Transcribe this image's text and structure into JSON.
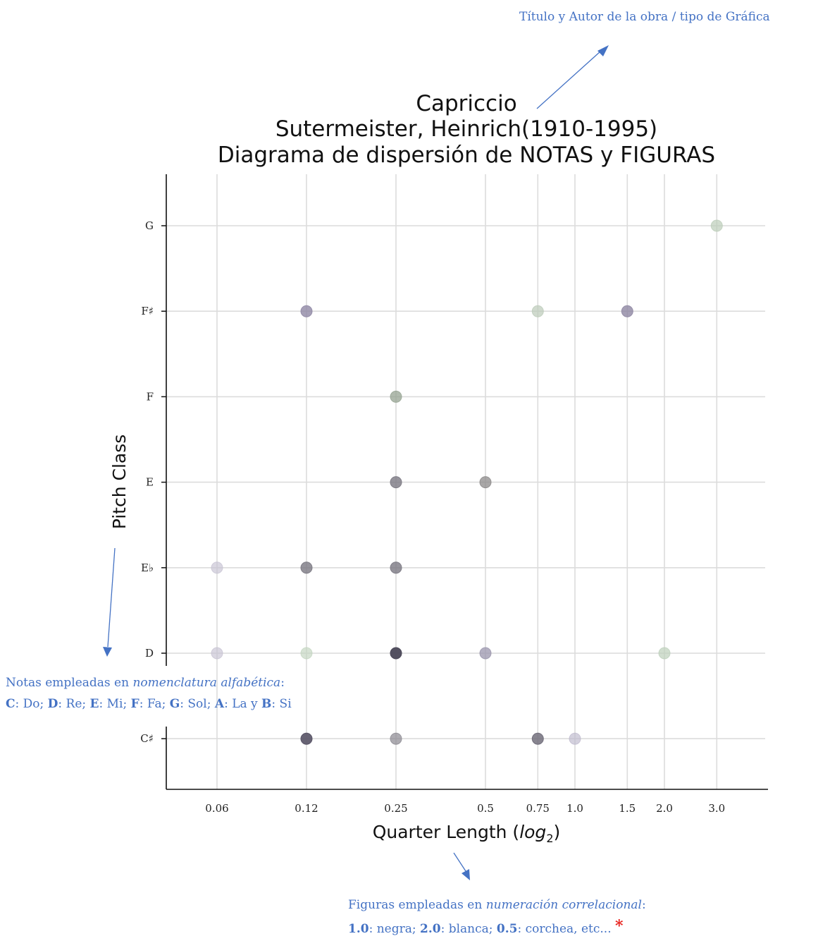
{
  "chart_data": {
    "type": "scatter",
    "title": [
      "Capriccio",
      "Sutermeister, Heinrich(1910-1995)",
      "Diagrama de dispersión de NOTAS y FIGURAS"
    ],
    "xlabel": "Quarter Length (log₂)",
    "ylabel": "Pitch Class",
    "x_scale": "log2",
    "x_ticks": [
      "0.06",
      "0.12",
      "0.25",
      "0.5",
      "0.75",
      "1.0",
      "1.5",
      "2.0",
      "3.0"
    ],
    "x_tick_values": [
      0.0625,
      0.125,
      0.25,
      0.5,
      0.75,
      1.0,
      1.5,
      2.0,
      3.0
    ],
    "y_categories": [
      "C♯",
      "D",
      "E♭",
      "E",
      "F",
      "F♯",
      "G"
    ],
    "grid": true,
    "points": [
      {
        "x": 0.125,
        "y": "C♯",
        "c": "#5a5668",
        "a": 0.92
      },
      {
        "x": 0.25,
        "y": "C♯",
        "c": "#8a8890",
        "a": 0.7
      },
      {
        "x": 0.75,
        "y": "C♯",
        "c": "#6e6a78",
        "a": 0.82
      },
      {
        "x": 1.0,
        "y": "C♯",
        "c": "#bdb8cc",
        "a": 0.65
      },
      {
        "x": 0.0625,
        "y": "D",
        "c": "#c6c1d2",
        "a": 0.65
      },
      {
        "x": 0.125,
        "y": "D",
        "c": "#c2d4bf",
        "a": 0.65
      },
      {
        "x": 0.25,
        "y": "D",
        "c": "#4b4858",
        "a": 0.95
      },
      {
        "x": 0.5,
        "y": "D",
        "c": "#9b96ad",
        "a": 0.75
      },
      {
        "x": 2.0,
        "y": "D",
        "c": "#bdd0bb",
        "a": 0.7
      },
      {
        "x": 0.0625,
        "y": "E♭",
        "c": "#c6c1d2",
        "a": 0.65
      },
      {
        "x": 0.125,
        "y": "E♭",
        "c": "#7a7882",
        "a": 0.8
      },
      {
        "x": 0.25,
        "y": "E♭",
        "c": "#7a7882",
        "a": 0.8
      },
      {
        "x": 0.25,
        "y": "E",
        "c": "#7a7882",
        "a": 0.8
      },
      {
        "x": 0.5,
        "y": "E",
        "c": "#8c8a8a",
        "a": 0.75
      },
      {
        "x": 0.25,
        "y": "F",
        "c": "#95a392",
        "a": 0.75
      },
      {
        "x": 0.125,
        "y": "F♯",
        "c": "#9088a5",
        "a": 0.8
      },
      {
        "x": 0.75,
        "y": "F♯",
        "c": "#bccab9",
        "a": 0.7
      },
      {
        "x": 1.5,
        "y": "F♯",
        "c": "#8f87a3",
        "a": 0.8
      },
      {
        "x": 3.0,
        "y": "G",
        "c": "#bccdb9",
        "a": 0.7
      }
    ]
  },
  "annotations": {
    "top": "Título y Autor de la obra / tipo de Gráfica",
    "notes_line1_prefix": "Notas empleadas en ",
    "notes_line1_italic": "nomenclatura alfabética",
    "notes_line1_suffix": ":",
    "notes_line2": [
      {
        "b": "C",
        "t": ": Do; "
      },
      {
        "b": "D",
        "t": ": Re; "
      },
      {
        "b": "E",
        "t": ": Mi; "
      },
      {
        "b": "F",
        "t": ": Fa; "
      },
      {
        "b": "G",
        "t": ": Sol; "
      },
      {
        "b": "A",
        "t": ": La y "
      },
      {
        "b": "B",
        "t": ": Si"
      }
    ],
    "figs_line1_prefix": "Figuras empleadas en ",
    "figs_line1_italic": "numeración correlacional",
    "figs_line1_suffix": ":",
    "figs_line2": [
      {
        "b": "1.0",
        "t": ": negra; "
      },
      {
        "b": "2.0",
        "t": ": blanca; "
      },
      {
        "b": "0.5",
        "t": ": corchea, etc... "
      }
    ],
    "asterisk": "*"
  },
  "colors": {
    "annotation": "#4472c4",
    "asterisk": "#e8231e",
    "grid": "#dcdcdc",
    "axis": "#111111"
  }
}
